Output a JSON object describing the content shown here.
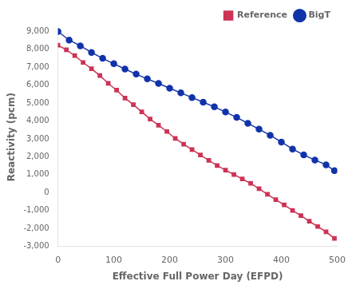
{
  "chart_data": {
    "type": "line",
    "xlabel": "Effective Full Power Day (EFPD)",
    "ylabel": "Reactivity (pcm)",
    "xlim": [
      0,
      500
    ],
    "ylim": [
      -3000,
      9200
    ],
    "xticks": [
      0,
      100,
      200,
      300,
      400,
      500
    ],
    "yticks": [
      {
        "value": -3000,
        "label": "-3,000"
      },
      {
        "value": -2000,
        "label": "-2,000"
      },
      {
        "value": -1000,
        "label": "-1,000"
      },
      0,
      {
        "value": 1000,
        "label": "1,000"
      },
      {
        "value": 2000,
        "label": "2,000"
      },
      {
        "value": 3000,
        "label": "3,000"
      },
      {
        "value": 4000,
        "label": "4,000"
      },
      {
        "value": 5000,
        "label": "5,000"
      },
      {
        "value": 6000,
        "label": "6,000"
      },
      {
        "value": 7000,
        "label": "7,000"
      },
      {
        "value": 8000,
        "label": "8,000"
      },
      {
        "value": 9000,
        "label": "9,000"
      }
    ],
    "grid": false,
    "legend": "upper right",
    "series": [
      {
        "name": "Reference",
        "color": "#CC3355",
        "marker": "square",
        "x": [
          0,
          15,
          30,
          45,
          60,
          75,
          90,
          105,
          120,
          135,
          150,
          165,
          180,
          195,
          210,
          225,
          240,
          255,
          270,
          285,
          300,
          315,
          330,
          345,
          360,
          375,
          390,
          405,
          420,
          435,
          450,
          465,
          480,
          495
        ],
        "values": [
          8230,
          7980,
          7650,
          7270,
          6920,
          6540,
          6100,
          5720,
          5280,
          4910,
          4510,
          4110,
          3760,
          3410,
          3020,
          2700,
          2400,
          2100,
          1800,
          1510,
          1250,
          1010,
          760,
          510,
          210,
          -100,
          -400,
          -690,
          -1000,
          -1290,
          -1600,
          -1900,
          -2200,
          -2560
        ]
      },
      {
        "name": "BigT",
        "color": "#1133AA",
        "marker": "circle",
        "x": [
          0,
          20,
          40,
          60,
          80,
          100,
          120,
          140,
          160,
          180,
          200,
          220,
          240,
          260,
          280,
          300,
          320,
          340,
          360,
          380,
          400,
          420,
          440,
          460,
          480,
          495
        ],
        "values": [
          9000,
          8520,
          8200,
          7830,
          7500,
          7200,
          6900,
          6620,
          6350,
          6100,
          5830,
          5570,
          5310,
          5050,
          4790,
          4500,
          4200,
          3870,
          3540,
          3200,
          2820,
          2430,
          2100,
          1820,
          1550,
          1220
        ]
      }
    ]
  }
}
